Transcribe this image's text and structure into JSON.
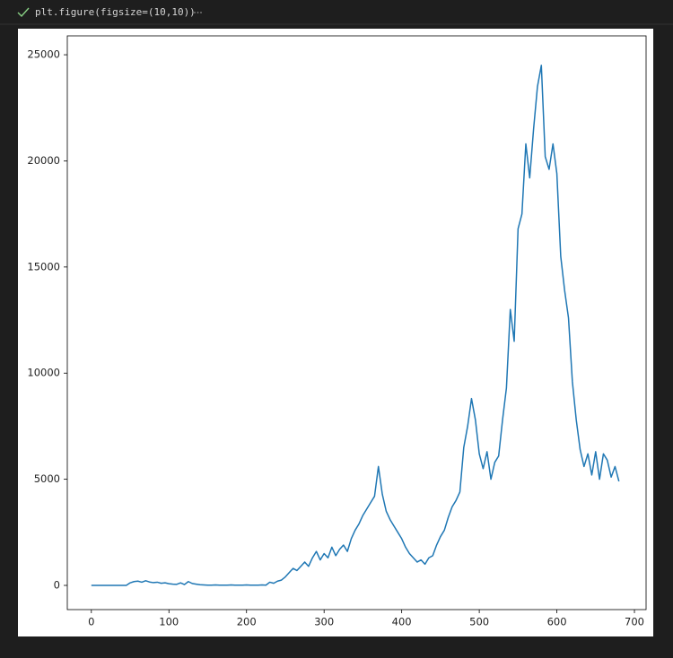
{
  "cell": {
    "code": "plt.figure(figsize=(10,10))"
  },
  "chart_data": {
    "type": "line",
    "x": [
      0,
      5,
      10,
      15,
      20,
      25,
      30,
      35,
      40,
      45,
      50,
      55,
      60,
      65,
      70,
      75,
      80,
      85,
      90,
      95,
      100,
      105,
      110,
      115,
      120,
      125,
      130,
      135,
      140,
      145,
      150,
      155,
      160,
      165,
      170,
      175,
      180,
      185,
      190,
      195,
      200,
      205,
      210,
      215,
      220,
      225,
      230,
      235,
      240,
      245,
      250,
      255,
      260,
      265,
      270,
      275,
      280,
      285,
      290,
      295,
      300,
      305,
      310,
      315,
      320,
      325,
      330,
      335,
      340,
      345,
      350,
      355,
      360,
      365,
      370,
      375,
      380,
      385,
      390,
      395,
      400,
      405,
      410,
      415,
      420,
      425,
      430,
      435,
      440,
      445,
      450,
      455,
      460,
      465,
      470,
      475,
      480,
      485,
      490,
      495,
      500,
      505,
      510,
      515,
      520,
      525,
      530,
      535,
      540,
      545,
      550,
      555,
      560,
      565,
      570,
      575,
      580,
      585,
      590,
      595,
      600,
      605,
      610,
      615,
      620,
      625,
      630,
      635,
      640,
      645,
      650,
      655,
      660,
      665,
      670,
      675,
      680
    ],
    "series": [
      {
        "color": "#1f77b4",
        "values": [
          0,
          0,
          0,
          0,
          0,
          0,
          0,
          0,
          0,
          0,
          120,
          180,
          200,
          150,
          220,
          160,
          130,
          150,
          100,
          120,
          80,
          60,
          50,
          120,
          40,
          180,
          90,
          60,
          30,
          20,
          10,
          10,
          20,
          10,
          10,
          10,
          20,
          10,
          10,
          10,
          20,
          10,
          10,
          10,
          20,
          10,
          150,
          100,
          200,
          250,
          400,
          600,
          800,
          700,
          900,
          1100,
          900,
          1300,
          1600,
          1200,
          1500,
          1300,
          1800,
          1400,
          1700,
          1900,
          1600,
          2200,
          2600,
          2900,
          3300,
          3600,
          3900,
          4200,
          5600,
          4300,
          3500,
          3100,
          2800,
          2500,
          2200,
          1800,
          1500,
          1300,
          1100,
          1200,
          1000,
          1300,
          1400,
          1900,
          2300,
          2600,
          3200,
          3700,
          4000,
          4400,
          6500,
          7500,
          8800,
          7800,
          6200,
          5500,
          6300,
          5000,
          5800,
          6100,
          7800,
          9300,
          13000,
          11500,
          16800,
          17500,
          20800,
          19200,
          21500,
          23500,
          24500,
          20200,
          19600,
          20800,
          19400,
          15500,
          13900,
          12600,
          9600,
          7800,
          6400,
          5600,
          6200,
          5200,
          6300,
          5000,
          6200,
          5900,
          5100,
          5600,
          4900
        ]
      }
    ],
    "xlim": [
      -31,
      715
    ],
    "ylim": [
      -1140,
      25890
    ],
    "xticks": [
      0,
      100,
      200,
      300,
      400,
      500,
      600,
      700
    ],
    "yticks": [
      0,
      5000,
      10000,
      15000,
      20000,
      25000
    ]
  }
}
